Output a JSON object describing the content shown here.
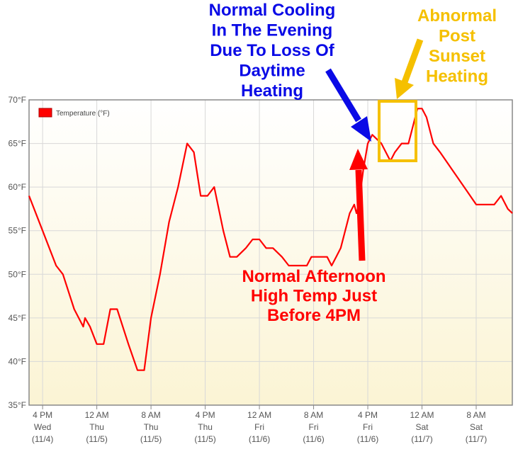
{
  "chart_data": {
    "type": "line",
    "title": "",
    "xlabel": "",
    "ylabel": "",
    "ylim": [
      35,
      70
    ],
    "y_ticks": [
      {
        "value": 70,
        "label": "70°F"
      },
      {
        "value": 65,
        "label": "65°F"
      },
      {
        "value": 60,
        "label": "60°F"
      },
      {
        "value": 55,
        "label": "55°F"
      },
      {
        "value": 50,
        "label": "50°F"
      },
      {
        "value": 45,
        "label": "45°F"
      },
      {
        "value": 40,
        "label": "40°F"
      },
      {
        "value": 35,
        "label": "35°F"
      }
    ],
    "xlim": [
      0,
      107
    ],
    "x_ticks": [
      {
        "value": 3,
        "lines": [
          "4 PM",
          "Wed",
          "(11/4)"
        ]
      },
      {
        "value": 15,
        "lines": [
          "12 AM",
          "Thu",
          "(11/5)"
        ]
      },
      {
        "value": 27,
        "lines": [
          "8 AM",
          "Thu",
          "(11/5)"
        ]
      },
      {
        "value": 39,
        "lines": [
          "4 PM",
          "Thu",
          "(11/5)"
        ]
      },
      {
        "value": 51,
        "lines": [
          "12 AM",
          "Fri",
          "(11/6)"
        ]
      },
      {
        "value": 63,
        "lines": [
          "8 AM",
          "Fri",
          "(11/6)"
        ]
      },
      {
        "value": 75,
        "lines": [
          "4 PM",
          "Fri",
          "(11/6)"
        ]
      },
      {
        "value": 87,
        "lines": [
          "12 AM",
          "Sat",
          "(11/7)"
        ]
      },
      {
        "value": 99,
        "lines": [
          "8 AM",
          "Sat",
          "(11/7)"
        ]
      }
    ],
    "legend": {
      "position": "top-left",
      "color": "#ff0000"
    },
    "grid": true,
    "series": [
      {
        "name": "Temperature (°F)",
        "color": "#ff0000",
        "points": [
          [
            0,
            59
          ],
          [
            3,
            55
          ],
          [
            6,
            51
          ],
          [
            7.5,
            50
          ],
          [
            10,
            46
          ],
          [
            12,
            44
          ],
          [
            12.4,
            45
          ],
          [
            13.5,
            44
          ],
          [
            15,
            42
          ],
          [
            16.5,
            42
          ],
          [
            18,
            46
          ],
          [
            19.5,
            46
          ],
          [
            22,
            42
          ],
          [
            24,
            39
          ],
          [
            25.5,
            39
          ],
          [
            27,
            45
          ],
          [
            29,
            50
          ],
          [
            31,
            56
          ],
          [
            33,
            60
          ],
          [
            35,
            65
          ],
          [
            36.5,
            64
          ],
          [
            38,
            59
          ],
          [
            39.5,
            59
          ],
          [
            41,
            60
          ],
          [
            43,
            55
          ],
          [
            44.5,
            52
          ],
          [
            46,
            52
          ],
          [
            48,
            53
          ],
          [
            49.5,
            54
          ],
          [
            51,
            54
          ],
          [
            52.5,
            53
          ],
          [
            54,
            53
          ],
          [
            56,
            52
          ],
          [
            57.5,
            51
          ],
          [
            60,
            51
          ],
          [
            61.5,
            51
          ],
          [
            62.5,
            52
          ],
          [
            64,
            52
          ],
          [
            66,
            52
          ],
          [
            67,
            51
          ],
          [
            68,
            52
          ],
          [
            69,
            53
          ],
          [
            71,
            57
          ],
          [
            72,
            58
          ],
          [
            72.5,
            57
          ],
          [
            73,
            58
          ],
          [
            73.5,
            60
          ],
          [
            74,
            62
          ],
          [
            75,
            65
          ],
          [
            76,
            66
          ],
          [
            78,
            65
          ],
          [
            79,
            64
          ],
          [
            80,
            63
          ],
          [
            81,
            64
          ],
          [
            82.5,
            65
          ],
          [
            84,
            65
          ],
          [
            85,
            67
          ],
          [
            86,
            69
          ],
          [
            87,
            69
          ],
          [
            88,
            68
          ],
          [
            89.5,
            65
          ],
          [
            91,
            64
          ],
          [
            93,
            62.5
          ],
          [
            95,
            61
          ],
          [
            97,
            59.5
          ],
          [
            99,
            58
          ],
          [
            101,
            58
          ],
          [
            103,
            58
          ],
          [
            104.5,
            59
          ],
          [
            106,
            57.5
          ],
          [
            107,
            57
          ]
        ]
      }
    ]
  },
  "annotations": {
    "blue": {
      "lines": [
        "Normal Cooling",
        "In The Evening",
        "Due To Loss Of",
        "Daytime",
        "Heating"
      ],
      "color": "#0a0ae6"
    },
    "red": {
      "lines": [
        "Normal Afternoon",
        "High Temp Just",
        "Before 4PM"
      ],
      "color": "#ff0000"
    },
    "yellow": {
      "lines": [
        "Abnormal",
        "Post",
        "Sunset",
        "Heating"
      ],
      "color": "#f5c000"
    }
  }
}
